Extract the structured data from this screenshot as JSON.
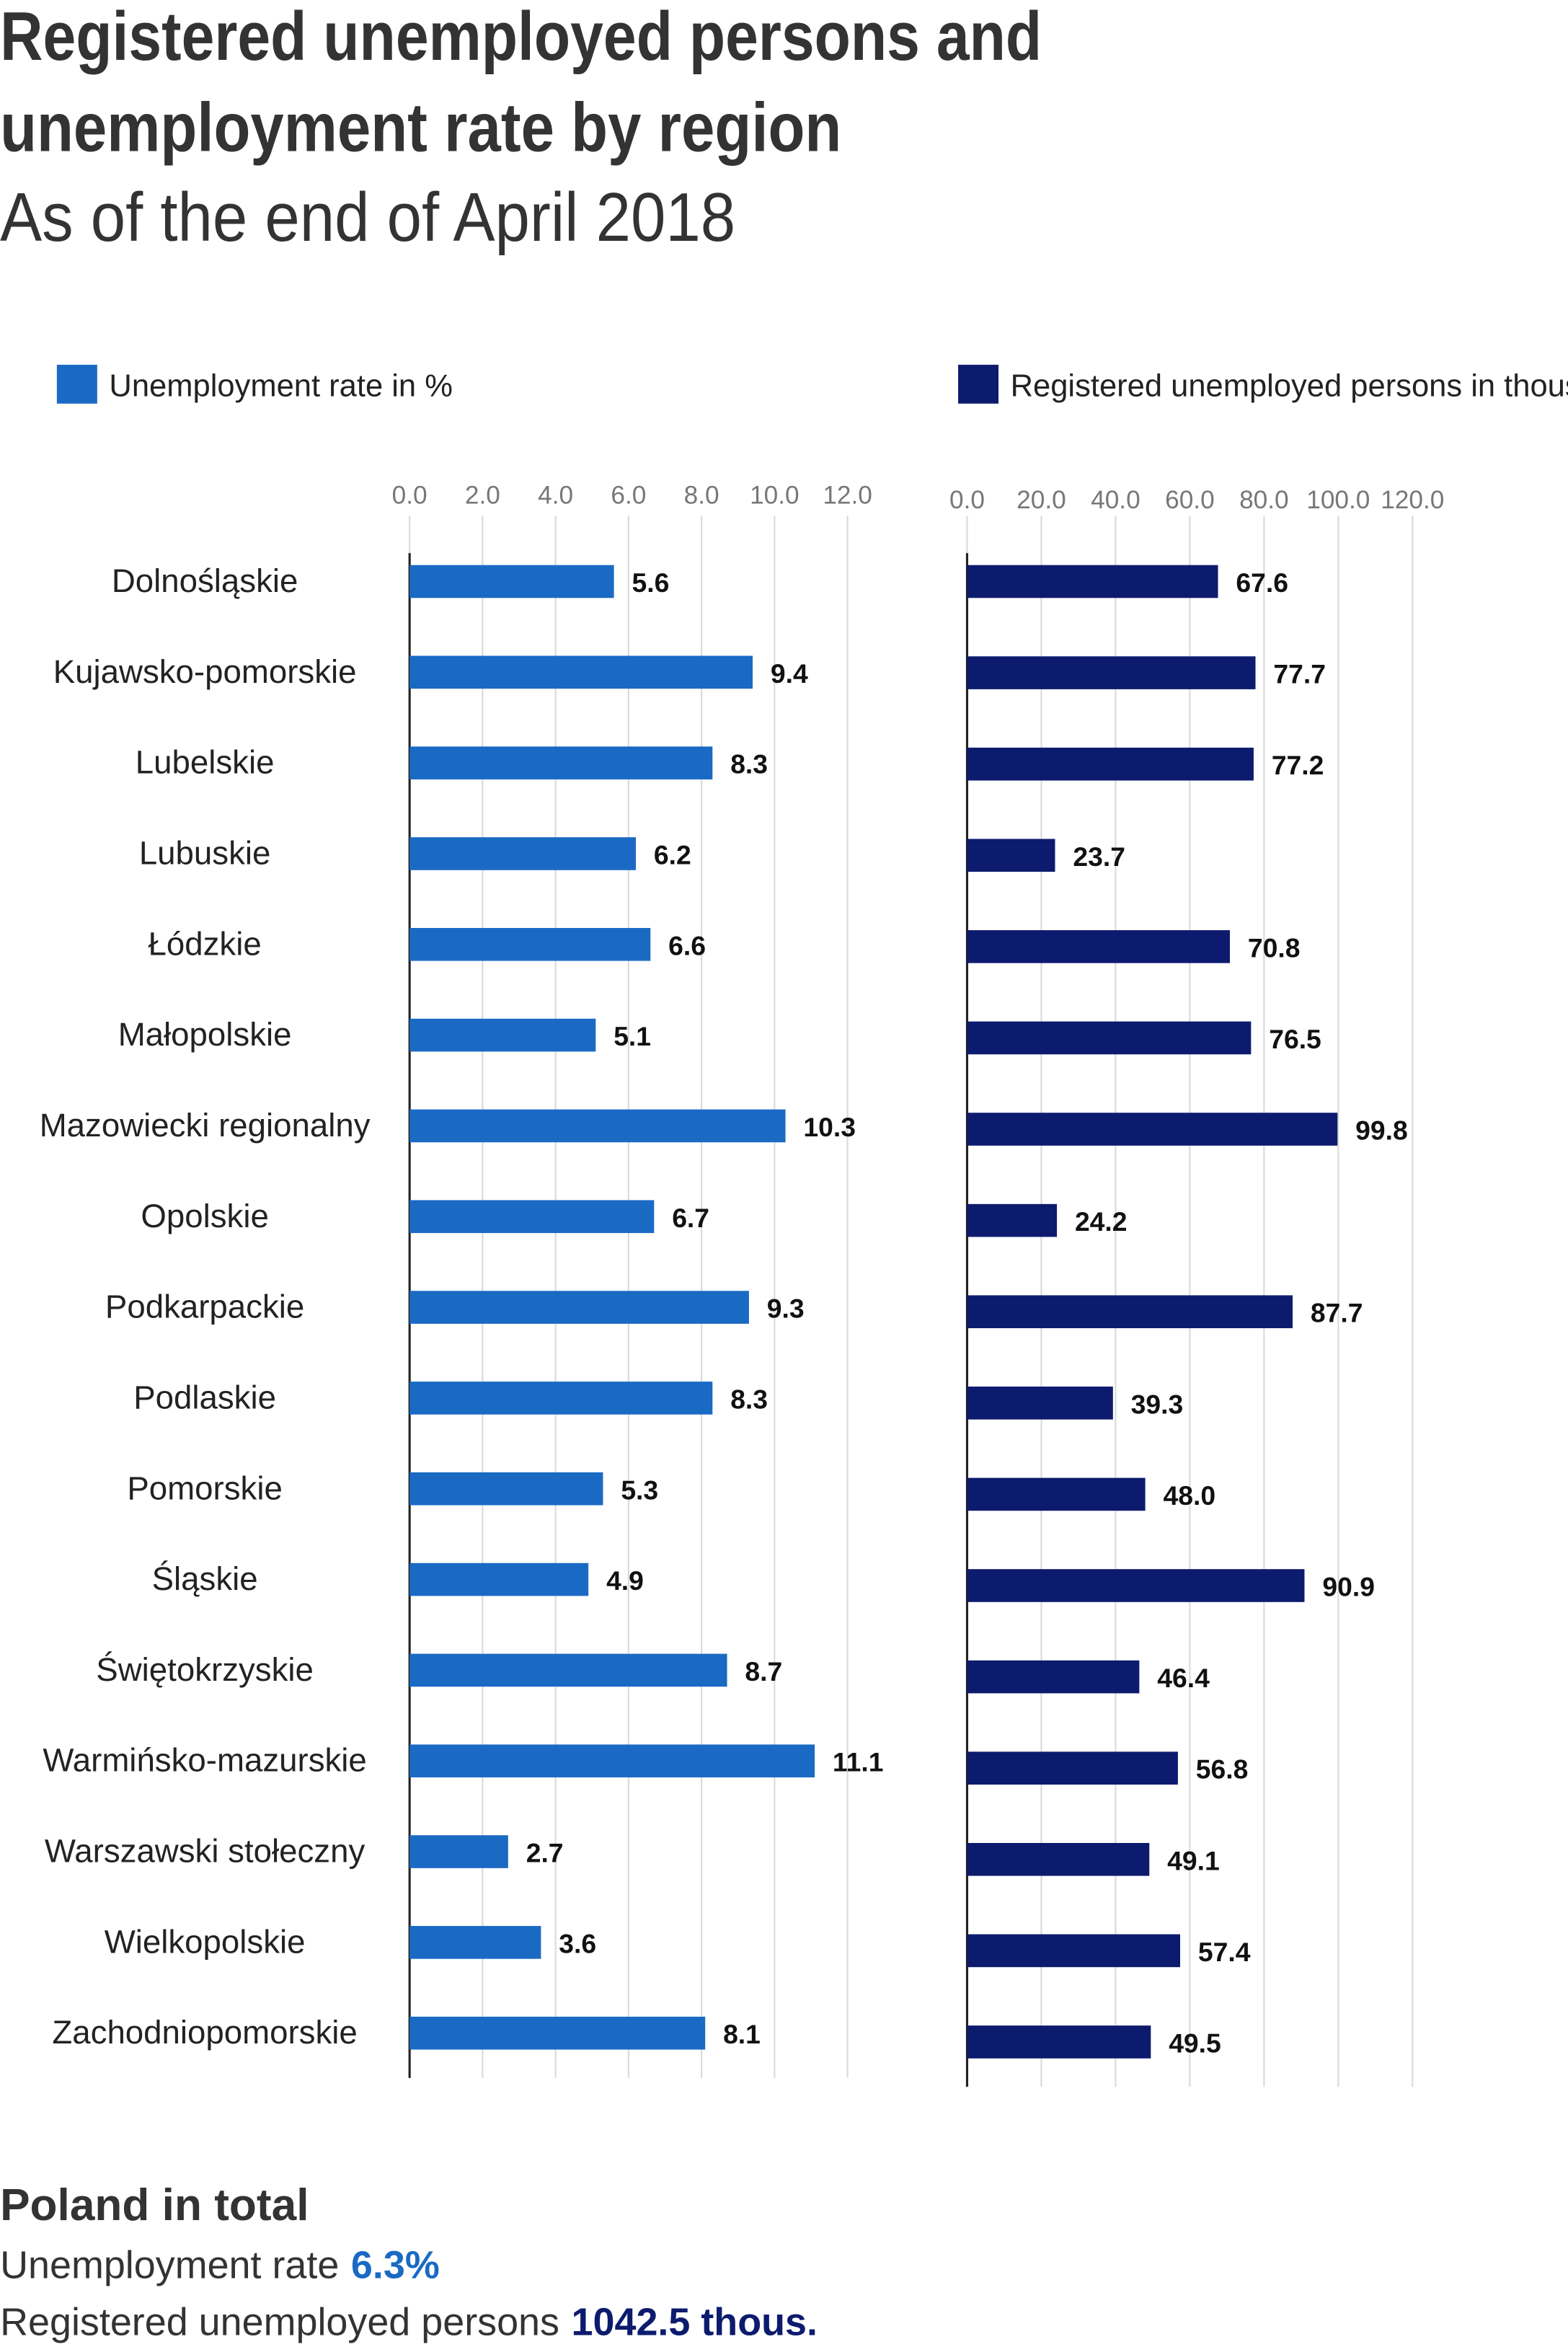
{
  "title": [
    "Registered unemployed persons and",
    "unemployment rate by region"
  ],
  "subtitle": "As of the end of April 2018",
  "chart_data": [
    {
      "type": "bar",
      "orientation": "horizontal",
      "categories": [
        "Dolnośląskie",
        "Kujawsko-pomorskie",
        "Lubelskie",
        "Lubuskie",
        "Łódzkie",
        "Małopolskie",
        "Mazowiecki regionalny",
        "Opolskie",
        "Podkarpackie",
        "Podlaskie",
        "Pomorskie",
        "Śląskie",
        "Świętokrzyskie",
        "Warmińsko-mazurskie",
        "Warszawski stołeczny",
        "Wielkopolskie",
        "Zachodniopomorskie"
      ],
      "series": [
        {
          "name": "Unemployment rate in %",
          "color": "#1a6ac4",
          "values": [
            5.6,
            9.4,
            8.3,
            6.2,
            6.6,
            5.1,
            10.3,
            6.7,
            9.3,
            8.3,
            5.3,
            4.9,
            8.7,
            11.1,
            2.7,
            3.6,
            8.1
          ]
        }
      ],
      "xlim": [
        0,
        12
      ],
      "xticks": [
        {
          "value": 0,
          "label": "0.0"
        },
        {
          "value": 2,
          "label": "2.0"
        },
        {
          "value": 4,
          "label": "4.0"
        },
        {
          "value": 6,
          "label": "6.0"
        },
        {
          "value": 8,
          "label": "8.0"
        },
        {
          "value": 10,
          "label": "10.0"
        },
        {
          "value": 12,
          "label": "12.0"
        }
      ],
      "grid": true
    },
    {
      "type": "bar",
      "orientation": "horizontal",
      "series": [
        {
          "name": "Registered unemployed persons in thous.",
          "color": "#0d1b6e",
          "values": [
            67.6,
            77.7,
            77.2,
            23.7,
            70.8,
            76.5,
            99.8,
            24.2,
            87.7,
            39.3,
            48.0,
            90.9,
            46.4,
            56.8,
            49.1,
            57.4,
            49.5
          ],
          "value_labels": [
            "67.6",
            "77.7",
            "77.2",
            "23.7",
            "70.8",
            "76.5",
            "99.8",
            "24.2",
            "87.7",
            "39.3",
            "48.0",
            "90.9",
            "46.4",
            "56.8",
            "49.1",
            "57.4",
            "49.5"
          ]
        }
      ],
      "xlim": [
        0,
        120
      ],
      "xticks": [
        {
          "value": 0,
          "label": "0.0"
        },
        {
          "value": 20,
          "label": "20.0"
        },
        {
          "value": 40,
          "label": "40.0"
        },
        {
          "value": 60,
          "label": "60.0"
        },
        {
          "value": 80,
          "label": "80.0"
        },
        {
          "value": 100,
          "label": "100.0"
        },
        {
          "value": 120,
          "label": "120.0"
        }
      ],
      "grid": true
    }
  ],
  "summary": {
    "heading": "Poland in total",
    "rate_label": "Unemployment rate",
    "rate_value": "6.3%",
    "persons_label": "Registered unemployed persons",
    "persons_value": "1042.5 thous."
  }
}
